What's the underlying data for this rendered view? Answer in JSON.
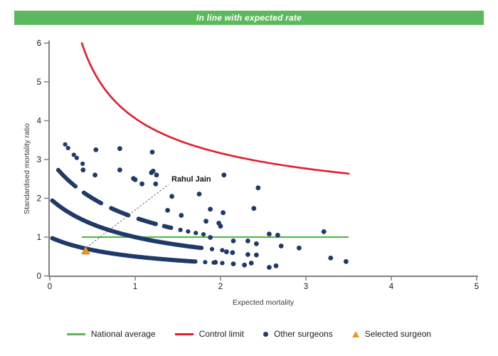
{
  "header": {
    "title": "In line with expected rate",
    "bg_color": "#5CB85C"
  },
  "chart_data": {
    "type": "scatter",
    "title": "",
    "x_axis": {
      "label": "Expected mortality",
      "min": 0,
      "max": 5,
      "ticks": [
        0,
        1,
        2,
        3,
        4,
        5
      ]
    },
    "y_axis": {
      "label": "Standardised mortality ratio",
      "min": 0,
      "max": 6,
      "ticks": [
        0,
        1,
        2,
        3,
        4,
        5,
        6
      ]
    },
    "grid": "off",
    "legend_position": "bottom",
    "national_average": {
      "y": 1,
      "x_start": 0.375,
      "x_end": 3.5,
      "color": "#56BA4E"
    },
    "control_limit": {
      "formula": "y = 1 + 3.06/sqrt(x)",
      "a": 1,
      "b": 3.06,
      "x_start": 0.375,
      "x_end": 3.5,
      "color": "#E51A2B",
      "samples": [
        [
          0.375,
          6.0
        ],
        [
          0.5,
          5.33
        ],
        [
          0.7,
          4.66
        ],
        [
          1.0,
          4.06
        ],
        [
          1.5,
          3.5
        ],
        [
          2.0,
          3.16
        ],
        [
          2.5,
          2.94
        ],
        [
          3.0,
          2.77
        ],
        [
          3.5,
          2.64
        ]
      ]
    },
    "point_color": "#1F3A68",
    "band_formula": {
      "description": "SMR = deaths / (expected + 1)",
      "s": 1.0
    },
    "other_surgeons_bands": [
      {
        "deaths": 1,
        "x_start": 0.03,
        "x_dense_end": 1.72,
        "dense_step": 0.018,
        "x_sparse_end": 2.02,
        "sparse_step": 0.1,
        "gaps": []
      },
      {
        "deaths": 2,
        "x_start": 0.03,
        "x_dense_end": 1.78,
        "dense_step": 0.018,
        "x_sparse_end": 2.1,
        "sparse_step": 0.12,
        "gaps": []
      },
      {
        "deaths": 3,
        "x_start": 0.1,
        "x_dense_end": 1.44,
        "dense_step": 0.02,
        "x_sparse_end": 1.86,
        "sparse_step": 0.09,
        "gaps": [
          [
            0.3,
            0.4
          ],
          [
            0.62,
            0.72
          ],
          [
            0.94,
            1.04
          ],
          [
            1.26,
            1.34
          ]
        ]
      },
      {
        "deaths": 4,
        "x_start": 0.18,
        "x_dense_end": 0.41,
        "dense_step": 0.034,
        "x_sparse_end": 0.41,
        "sparse_step": 0.1,
        "gaps": [
          [
            0.24,
            0.275
          ],
          [
            0.33,
            0.365
          ]
        ]
      }
    ],
    "other_surgeons_scatter": [
      [
        0.54,
        3.25
      ],
      [
        0.82,
        3.28
      ],
      [
        1.2,
        3.19
      ],
      [
        0.39,
        2.73
      ],
      [
        0.53,
        2.6
      ],
      [
        0.82,
        2.73
      ],
      [
        0.98,
        2.51
      ],
      [
        1.0,
        2.48
      ],
      [
        1.08,
        2.37
      ],
      [
        1.19,
        2.66
      ],
      [
        1.21,
        2.7
      ],
      [
        1.24,
        2.37
      ],
      [
        1.25,
        2.6
      ],
      [
        1.43,
        2.05
      ],
      [
        1.75,
        2.11
      ],
      [
        2.04,
        2.6
      ],
      [
        2.44,
        2.27
      ],
      [
        1.38,
        1.69
      ],
      [
        1.54,
        1.56
      ],
      [
        1.88,
        1.72
      ],
      [
        2.03,
        1.63
      ],
      [
        2.39,
        1.74
      ],
      [
        1.83,
        1.41
      ],
      [
        1.98,
        1.36
      ],
      [
        2.0,
        1.28
      ],
      [
        1.88,
        0.99
      ],
      [
        2.57,
        1.08
      ],
      [
        2.67,
        1.05
      ],
      [
        3.21,
        1.14
      ],
      [
        2.15,
        0.9
      ],
      [
        2.32,
        0.9
      ],
      [
        2.42,
        0.83
      ],
      [
        2.71,
        0.77
      ],
      [
        2.92,
        0.72
      ],
      [
        2.07,
        0.62
      ],
      [
        2.14,
        0.6
      ],
      [
        2.32,
        0.55
      ],
      [
        2.42,
        0.54
      ],
      [
        1.94,
        0.35
      ],
      [
        2.15,
        0.31
      ],
      [
        2.28,
        0.28
      ],
      [
        2.36,
        0.33
      ],
      [
        2.57,
        0.22
      ],
      [
        2.65,
        0.26
      ],
      [
        3.29,
        0.46
      ],
      [
        3.47,
        0.37
      ]
    ],
    "selected_surgeon": {
      "name": "Rahul Jain",
      "x": 0.42,
      "y": 0.655,
      "color": "#F7941E"
    }
  },
  "legend": {
    "items": [
      {
        "label": "National average",
        "swatch": "line",
        "color": "#56BA4E"
      },
      {
        "label": "Control limit",
        "swatch": "line",
        "color": "#E51A2B"
      },
      {
        "label": "Other surgeons",
        "swatch": "dot",
        "color": "#1F3A68"
      },
      {
        "label": "Selected surgeon",
        "swatch": "triangle",
        "color": "#F7941E"
      }
    ]
  }
}
